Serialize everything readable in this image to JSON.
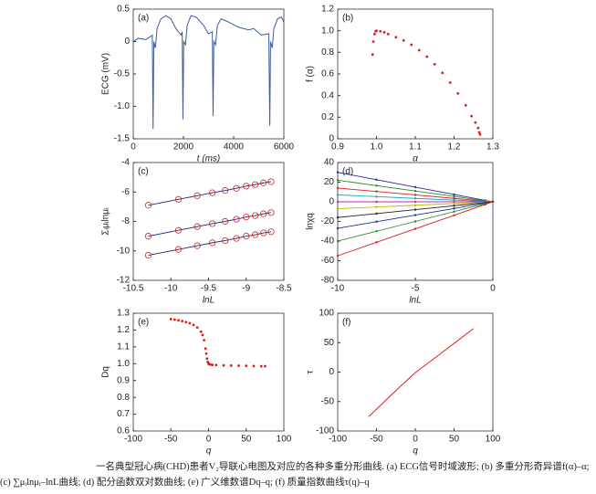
{
  "chart_data": [
    {
      "type": "line",
      "panel_label": "(a)",
      "xlabel": "t (ms)",
      "ylabel": "ECG (mV)",
      "color": "#3b5b9e",
      "x": [
        0,
        200,
        500,
        700,
        760,
        790,
        820,
        880,
        950,
        1100,
        1300,
        1500,
        1700,
        1900,
        1950,
        1980,
        2010,
        2080,
        2150,
        2300,
        2500,
        2800,
        3000,
        3150,
        3180,
        3210,
        3280,
        3350,
        3500,
        3800,
        4200,
        4600,
        4800,
        5100,
        5400,
        5440,
        5470,
        5540,
        5600,
        5750,
        5900,
        6000
      ],
      "values": [
        0.0,
        0.05,
        0.03,
        0.08,
        0.1,
        -1.35,
        0.0,
        -0.1,
        0.2,
        0.35,
        0.4,
        0.35,
        0.2,
        0.1,
        0.15,
        -1.2,
        0.0,
        -0.05,
        0.25,
        0.4,
        0.38,
        0.25,
        0.12,
        0.15,
        -1.15,
        0.0,
        -0.05,
        0.25,
        0.35,
        0.3,
        0.22,
        0.18,
        0.2,
        0.1,
        0.12,
        -1.3,
        0.0,
        -0.1,
        0.2,
        0.35,
        0.38,
        0.3
      ],
      "xlim": [
        0,
        6000
      ],
      "xticks": [
        0,
        2000,
        4000,
        6000
      ],
      "ylim": [
        -1.5,
        0.5
      ],
      "yticks": [
        -1.5,
        {
          "value": -1.0,
          "label": "-1.0"
        },
        -0.5,
        0,
        0.5
      ]
    },
    {
      "type": "scatter",
      "panel_label": "(b)",
      "xlabel": "α",
      "ylabel": "f (α)",
      "color": "#d62020",
      "x": [
        0.99,
        0.992,
        0.995,
        0.998,
        1.0,
        1.01,
        1.02,
        1.03,
        1.05,
        1.07,
        1.09,
        1.11,
        1.13,
        1.15,
        1.17,
        1.19,
        1.21,
        1.23,
        1.245,
        1.255,
        1.262,
        1.265,
        1.267
      ],
      "values": [
        0.78,
        0.9,
        0.97,
        0.995,
        1.0,
        0.995,
        0.985,
        0.97,
        0.94,
        0.91,
        0.87,
        0.82,
        0.76,
        0.69,
        0.61,
        0.52,
        0.42,
        0.31,
        0.21,
        0.15,
        0.1,
        0.06,
        0.04
      ],
      "xlim": [
        0.9,
        1.3
      ],
      "xticks": [
        0.9,
        {
          "value": 1.0,
          "label": "1.0"
        },
        1.1,
        1.2,
        1.3
      ],
      "ylim": [
        0,
        1.2
      ],
      "yticks": [
        0,
        0.2,
        0.4,
        0.6,
        0.8,
        {
          "value": 1.0,
          "label": "1.0"
        },
        1.2
      ]
    },
    {
      "type": "line",
      "panel_label": "(c)",
      "xlabel": "lnL",
      "ylabel": "Σᵢμᵢlnμᵢ",
      "marker": "circle",
      "marker_color": "#d62020",
      "x": [
        -10.3,
        -9.9,
        -9.65,
        -9.45,
        -9.28,
        -9.13,
        -9.0,
        -8.88,
        -8.77,
        -8.67
      ],
      "series": [
        {
          "color": "#1a2a78",
          "values": [
            -6.9,
            -6.5,
            -6.25,
            -6.05,
            -5.9,
            -5.75,
            -5.6,
            -5.5,
            -5.38,
            -5.3
          ]
        },
        {
          "color": "#1a2a78",
          "values": [
            -9.0,
            -8.6,
            -8.35,
            -8.15,
            -8.0,
            -7.85,
            -7.7,
            -7.6,
            -7.48,
            -7.4
          ]
        },
        {
          "color": "#1a2a78",
          "values": [
            -10.3,
            -9.9,
            -9.65,
            -9.45,
            -9.3,
            -9.15,
            -9.0,
            -8.9,
            -8.78,
            -8.7
          ]
        }
      ],
      "xlim": [
        -10.5,
        -8.5
      ],
      "xticks": [
        -10.5,
        -10,
        -9.5,
        -9,
        -8.5
      ],
      "ylim": [
        -12,
        -4
      ],
      "yticks": [
        -12,
        -10,
        -8,
        -6,
        -4
      ]
    },
    {
      "type": "line",
      "panel_label": "(d)",
      "xlabel": "lnL",
      "ylabel": "lnχq",
      "marker": "dot",
      "x": [
        -10,
        -7.5,
        -5,
        -2.5,
        -0.5,
        0
      ],
      "series": [
        {
          "color": "#1f2f9a",
          "values": [
            30,
            22.5,
            15,
            7.5,
            1.5,
            0
          ]
        },
        {
          "color": "#2a8a2a",
          "values": [
            22,
            16.5,
            11,
            5.5,
            1.1,
            0
          ]
        },
        {
          "color": "#d62020",
          "values": [
            14,
            10.5,
            7,
            3.5,
            0.7,
            0
          ]
        },
        {
          "color": "#18a8b8",
          "values": [
            7,
            5.25,
            3.5,
            1.75,
            0.35,
            0
          ]
        },
        {
          "color": "#c020c0",
          "values": [
            0,
            0,
            0,
            0,
            0,
            0
          ]
        },
        {
          "color": "#c8b400",
          "values": [
            -7,
            -5.25,
            -3.5,
            -1.75,
            -0.35,
            0
          ]
        },
        {
          "color": "#222222",
          "values": [
            -16,
            -12,
            -8,
            -4,
            -0.8,
            0
          ]
        },
        {
          "color": "#1f2f9a",
          "values": [
            -27,
            -20.25,
            -13.5,
            -6.75,
            -1.35,
            0
          ]
        },
        {
          "color": "#2a8a2a",
          "values": [
            -40,
            -30,
            -20,
            -10,
            -2,
            0
          ]
        },
        {
          "color": "#d62020",
          "values": [
            -55,
            -41.25,
            -27.5,
            -13.75,
            -2.75,
            0
          ]
        }
      ],
      "xlim": [
        -10,
        0
      ],
      "xticks": [
        -10,
        -5,
        0
      ],
      "ylim": [
        -80,
        40
      ],
      "yticks": [
        -80,
        -60,
        -40,
        -20,
        0,
        20,
        40
      ]
    },
    {
      "type": "scatter",
      "panel_label": "(e)",
      "xlabel": "q",
      "ylabel": "Dq",
      "color": "#d62020",
      "x": [
        -50,
        -45,
        -40,
        -35,
        -30,
        -25,
        -20,
        -15,
        -10,
        -8,
        -6,
        -4,
        -3,
        -2,
        -1,
        0,
        1,
        2,
        5,
        10,
        20,
        30,
        40,
        50,
        60,
        70,
        75
      ],
      "values": [
        1.265,
        1.262,
        1.258,
        1.253,
        1.247,
        1.24,
        1.23,
        1.215,
        1.19,
        1.17,
        1.14,
        1.09,
        1.06,
        1.03,
        1.01,
        1.0,
        0.997,
        0.995,
        0.993,
        0.992,
        0.99,
        0.989,
        0.988,
        0.987,
        0.986,
        0.985,
        0.985
      ],
      "xlim": [
        -100,
        100
      ],
      "xticks": [
        -100,
        -50,
        0,
        50,
        100
      ],
      "ylim": [
        0.6,
        1.3
      ],
      "yticks": [
        0.6,
        0.7,
        0.8,
        0.9,
        {
          "value": 1.0,
          "label": "1.0"
        },
        1.1,
        1.2,
        1.3
      ]
    },
    {
      "type": "line",
      "panel_label": "(f)",
      "xlabel": "q",
      "ylabel": "τ",
      "color": "#d62020",
      "x": [
        -60,
        -40,
        -20,
        0,
        20,
        40,
        60,
        75
      ],
      "values": [
        -75.6,
        -50.4,
        -25.2,
        -1,
        18.8,
        38.8,
        58.8,
        73.8
      ],
      "xlim": [
        -100,
        100
      ],
      "xticks": [
        -100,
        -50,
        0,
        50,
        100
      ],
      "ylim": [
        -100,
        100
      ],
      "yticks": [
        -100,
        -50,
        0,
        50,
        100
      ]
    }
  ],
  "caption": {
    "line1": "一名典型冠心病(CHD)患者V₂导联心电图及对应的各种多重分形曲线. (a) ECG信号时域波形; (b) 多重分形奇异谱f(α)–α;",
    "line2": "(c) ∑μᵢlnμᵢ–lnL曲线; (d) 配分函数双对数曲线; (e) 广义维数谱Dq–q; (f) 质量指数曲线τ(q)–q"
  }
}
